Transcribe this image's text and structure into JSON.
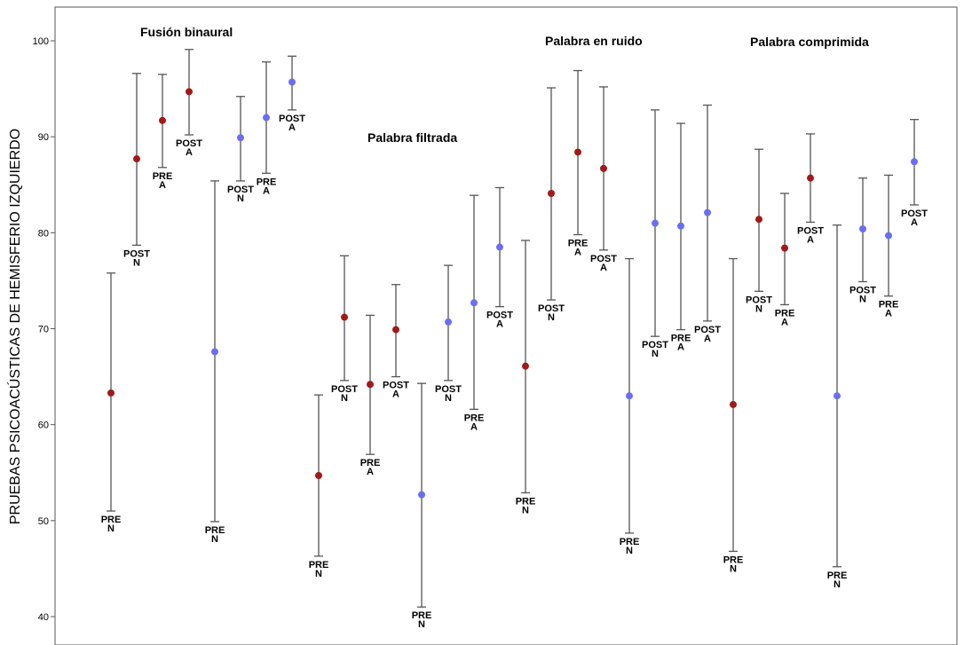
{
  "chart_data": {
    "type": "scatter",
    "subtype": "error-bar",
    "ylabel": "PRUEBAS PSICOACÚSTICAS DE HEMISFERIO IZQUIERDO",
    "ylim": [
      38,
      104
    ],
    "yticks": [
      40,
      50,
      60,
      70,
      80,
      90,
      100
    ],
    "colors": {
      "red": "#a11a1a",
      "blue": "#6a6ef0",
      "whisker": "#555555",
      "axis": "#555555"
    },
    "groups": [
      "Fusión binaural",
      "Palabra filtrada",
      "Palabra en ruido",
      "Palabra comprimida"
    ],
    "points": [
      {
        "group": "Fusión binaural",
        "label": [
          "PRE",
          "N"
        ],
        "color": "red",
        "mean": 63.3,
        "low": 51,
        "high": 75.8
      },
      {
        "group": "Fusión binaural",
        "label": [
          "POST",
          "N"
        ],
        "color": "red",
        "mean": 87.7,
        "low": 78.7,
        "high": 96.6
      },
      {
        "group": "Fusión binaural",
        "label": [
          "PRE",
          "A"
        ],
        "color": "red",
        "mean": 91.7,
        "low": 86.8,
        "high": 96.5
      },
      {
        "group": "Fusión binaural",
        "label": [
          "POST",
          "A"
        ],
        "color": "red",
        "mean": 94.7,
        "low": 90.2,
        "high": 99.1
      },
      {
        "group": "Fusión binaural",
        "label": [
          "PRE",
          "N"
        ],
        "color": "blue",
        "mean": 67.6,
        "low": 49.9,
        "high": 85.4
      },
      {
        "group": "Fusión binaural",
        "label": [
          "POST",
          "N"
        ],
        "color": "blue",
        "mean": 89.9,
        "low": 85.4,
        "high": 94.2
      },
      {
        "group": "Fusión binaural",
        "label": [
          "PRE",
          "A"
        ],
        "color": "blue",
        "mean": 92.0,
        "low": 86.2,
        "high": 97.8
      },
      {
        "group": "Fusión binaural",
        "label": [
          "POST",
          "A"
        ],
        "color": "blue",
        "mean": 95.7,
        "low": 92.8,
        "high": 98.4
      },
      {
        "group": "Palabra filtrada",
        "label": [
          "PRE",
          "N"
        ],
        "color": "red",
        "mean": 54.7,
        "low": 46.3,
        "high": 63.1
      },
      {
        "group": "Palabra filtrada",
        "label": [
          "POST",
          "N"
        ],
        "color": "red",
        "mean": 71.2,
        "low": 64.6,
        "high": 77.6
      },
      {
        "group": "Palabra filtrada",
        "label": [
          "PRE",
          "A"
        ],
        "color": "red",
        "mean": 64.2,
        "low": 56.9,
        "high": 71.4
      },
      {
        "group": "Palabra filtrada",
        "label": [
          "POST",
          "A"
        ],
        "color": "red",
        "mean": 69.9,
        "low": 65.0,
        "high": 74.6
      },
      {
        "group": "Palabra filtrada",
        "label": [
          "PRE",
          "N"
        ],
        "color": "blue",
        "mean": 52.7,
        "low": 41.0,
        "high": 64.3
      },
      {
        "group": "Palabra filtrada",
        "label": [
          "POST",
          "N"
        ],
        "color": "blue",
        "mean": 70.7,
        "low": 64.6,
        "high": 76.6
      },
      {
        "group": "Palabra filtrada",
        "label": [
          "PRE",
          "A"
        ],
        "color": "blue",
        "mean": 72.7,
        "low": 61.6,
        "high": 83.9
      },
      {
        "group": "Palabra filtrada",
        "label": [
          "POST",
          "A"
        ],
        "color": "blue",
        "mean": 78.5,
        "low": 72.3,
        "high": 84.7
      },
      {
        "group": "Palabra en ruido",
        "label": [
          "PRE",
          "N"
        ],
        "color": "red",
        "mean": 66.1,
        "low": 52.9,
        "high": 79.2
      },
      {
        "group": "Palabra en ruido",
        "label": [
          "POST",
          "N"
        ],
        "color": "red",
        "mean": 84.1,
        "low": 73.0,
        "high": 95.1
      },
      {
        "group": "Palabra en ruido",
        "label": [
          "PRE",
          "A"
        ],
        "color": "red",
        "mean": 88.4,
        "low": 79.8,
        "high": 96.9
      },
      {
        "group": "Palabra en ruido",
        "label": [
          "POST",
          "A"
        ],
        "color": "red",
        "mean": 86.7,
        "low": 78.2,
        "high": 95.2
      },
      {
        "group": "Palabra en ruido",
        "label": [
          "PRE",
          "N"
        ],
        "color": "blue",
        "mean": 63.0,
        "low": 48.7,
        "high": 77.3
      },
      {
        "group": "Palabra en ruido",
        "label": [
          "POST",
          "N"
        ],
        "color": "blue",
        "mean": 81.0,
        "low": 69.2,
        "high": 92.8
      },
      {
        "group": "Palabra en ruido",
        "label": [
          "PRE",
          "A"
        ],
        "color": "blue",
        "mean": 80.7,
        "low": 69.9,
        "high": 91.4
      },
      {
        "group": "Palabra en ruido",
        "label": [
          "POST",
          "A"
        ],
        "color": "blue",
        "mean": 82.1,
        "low": 70.8,
        "high": 93.3
      },
      {
        "group": "Palabra comprimida",
        "label": [
          "PRE",
          "N"
        ],
        "color": "red",
        "mean": 62.1,
        "low": 46.8,
        "high": 77.3
      },
      {
        "group": "Palabra comprimida",
        "label": [
          "POST",
          "N"
        ],
        "color": "red",
        "mean": 81.4,
        "low": 73.9,
        "high": 88.7
      },
      {
        "group": "Palabra comprimida",
        "label": [
          "PRE",
          "A"
        ],
        "color": "red",
        "mean": 78.4,
        "low": 72.5,
        "high": 84.1
      },
      {
        "group": "Palabra comprimida",
        "label": [
          "POST",
          "A"
        ],
        "color": "red",
        "mean": 85.7,
        "low": 81.1,
        "high": 90.3
      },
      {
        "group": "Palabra comprimida",
        "label": [
          "PRE",
          "N"
        ],
        "color": "blue",
        "mean": 63.0,
        "low": 45.2,
        "high": 80.8
      },
      {
        "group": "Palabra comprimida",
        "label": [
          "POST",
          "N"
        ],
        "color": "blue",
        "mean": 80.4,
        "low": 74.9,
        "high": 85.7
      },
      {
        "group": "Palabra comprimida",
        "label": [
          "PRE",
          "A"
        ],
        "color": "blue",
        "mean": 79.7,
        "low": 73.4,
        "high": 86.0
      },
      {
        "group": "Palabra comprimida",
        "label": [
          "POST",
          "A"
        ],
        "color": "blue",
        "mean": 87.4,
        "low": 82.9,
        "high": 91.8
      }
    ]
  }
}
